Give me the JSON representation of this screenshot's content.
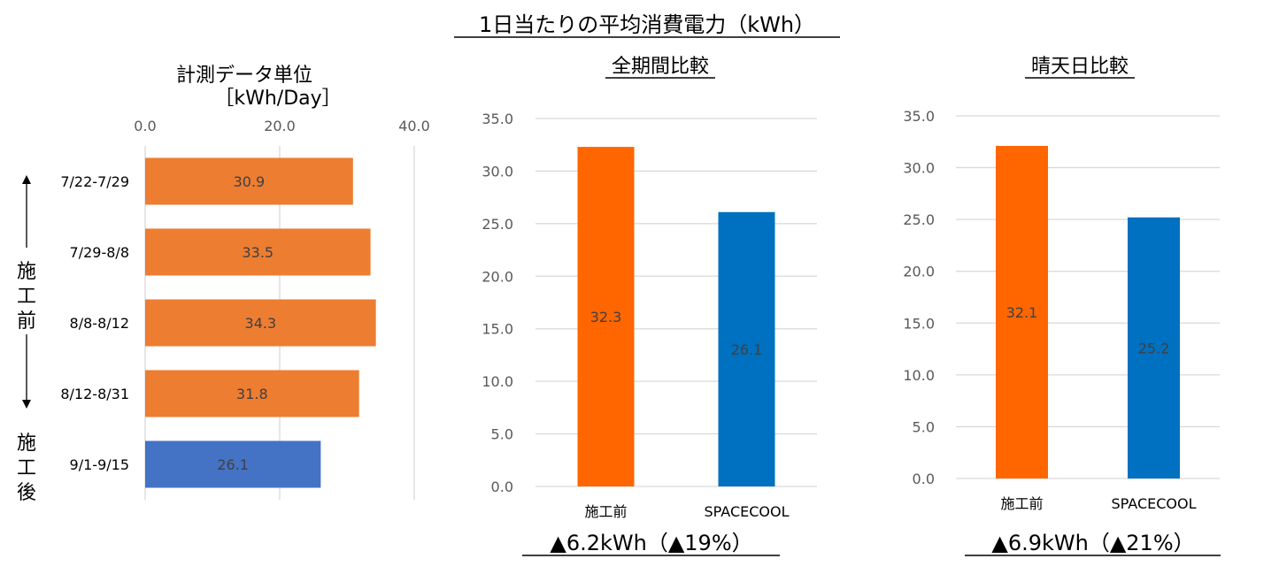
{
  "title": "1日当たりの平均消費電力（kWh）",
  "colors": {
    "orange": "#ED7D31",
    "bright_orange": "#FF6600",
    "blue": "#4472C4",
    "bright_blue": "#0070C0",
    "grid": "#D9D9D9"
  },
  "side_labels": {
    "before": "施工前",
    "after": "施工後"
  },
  "chart_data": [
    {
      "type": "bar",
      "orientation": "horizontal",
      "title": "計測データ単位",
      "unit": "［kWh/Day］",
      "categories": [
        "7/22-7/29",
        "7/29-8/8",
        "8/8-8/12",
        "8/12-8/31",
        "9/1-9/15"
      ],
      "values": [
        30.9,
        33.5,
        34.3,
        31.8,
        26.1
      ],
      "value_labels": [
        "30.9",
        "33.5",
        "34.3",
        "31.8",
        "26.1"
      ],
      "bar_colors": [
        "#ED7D31",
        "#ED7D31",
        "#ED7D31",
        "#ED7D31",
        "#4472C4"
      ],
      "xlim": [
        0,
        40
      ],
      "ticks": [
        "0.0",
        "20.0",
        "40.0"
      ],
      "axis_position": "top",
      "grid": true
    },
    {
      "type": "bar",
      "title": "全期間比較",
      "categories": [
        "施工前",
        "SPACECOOL"
      ],
      "values": [
        32.3,
        26.1
      ],
      "value_labels": [
        "32.3",
        "26.1"
      ],
      "bar_colors": [
        "#FF6600",
        "#0070C0"
      ],
      "ylim": [
        0,
        35
      ],
      "ticks": [
        "0.0",
        "5.0",
        "10.0",
        "15.0",
        "20.0",
        "25.0",
        "30.0",
        "35.0"
      ],
      "grid": true,
      "annotation": "▲6.2kWh（▲19%）"
    },
    {
      "type": "bar",
      "title": "晴天日比較",
      "categories": [
        "施工前",
        "SPACECOOL"
      ],
      "values": [
        32.1,
        25.2
      ],
      "value_labels": [
        "32.1",
        "25.2"
      ],
      "bar_colors": [
        "#FF6600",
        "#0070C0"
      ],
      "ylim": [
        0,
        35
      ],
      "ticks": [
        "0.0",
        "5.0",
        "10.0",
        "15.0",
        "20.0",
        "25.0",
        "30.0",
        "35.0"
      ],
      "grid": true,
      "annotation": "▲6.9kWh（▲21%）"
    }
  ]
}
